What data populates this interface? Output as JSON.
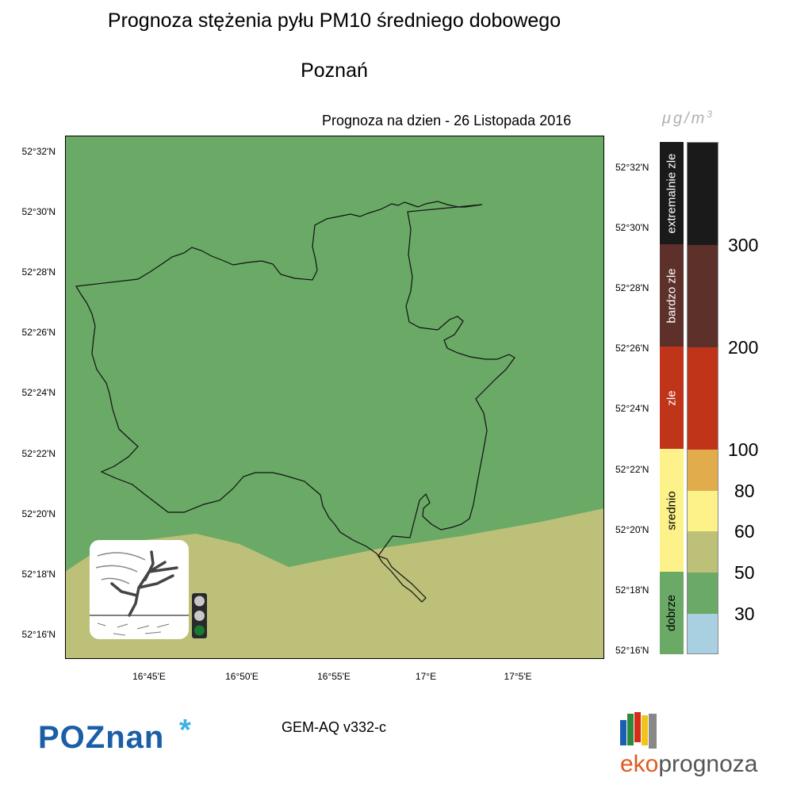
{
  "title": "Prognoza stężenia pyłu PM10 średniego dobowego",
  "city": "Poznań",
  "forecast_label": "Prognoza na dzien -  26 Listopada 2016",
  "unit": {
    "prefix": "μg",
    "slash": "/",
    "base": "m",
    "exp": "3"
  },
  "map": {
    "lat_labels_left": [
      "52°32'N",
      "52°30'N",
      "52°28'N",
      "52°26'N",
      "52°24'N",
      "52°22'N",
      "52°20'N",
      "52°18'N",
      "52°16'N"
    ],
    "lat_labels_right": [
      "52°32'N",
      "52°30'N",
      "52°28'N",
      "52°26'N",
      "52°24'N",
      "52°22'N",
      "52°20'N",
      "52°18'N",
      "52°16'N"
    ],
    "lon_labels": [
      "16°45'E",
      "16°50'E",
      "16°55'E",
      "17°E",
      "17°5'E"
    ],
    "colors": {
      "green": "#6aa966",
      "olive": "#bdc078",
      "boundary": "#111111"
    }
  },
  "legend": {
    "categories": [
      {
        "label": "extremalnie zle",
        "color": "#1a1a1a"
      },
      {
        "label": "bardzo zle",
        "color": "#5e302a"
      },
      {
        "label": "zle",
        "color": "#c0341a"
      },
      {
        "label": "srednio",
        "color": "#fdf28a"
      },
      {
        "label": "dobrze",
        "color": "#6aa966"
      }
    ],
    "scale_colors": [
      "#1a1a1a",
      "#5e302a",
      "#c0341a",
      "#e1ad4c",
      "#fdf28a",
      "#bdc078",
      "#6aa966",
      "#a8d0e0"
    ],
    "scale_values": [
      "300",
      "200",
      "100",
      "80",
      "60",
      "50",
      "30"
    ]
  },
  "traffic_light": {
    "colors": [
      "#c8c8c8",
      "#c8c8c8",
      "#1a7a30"
    ]
  },
  "model": "GEM-AQ v332-c",
  "logos": {
    "poznan": "POZnan",
    "poznan_star": "*",
    "eko_prefix": "eko",
    "eko_suffix": "prognoza"
  }
}
